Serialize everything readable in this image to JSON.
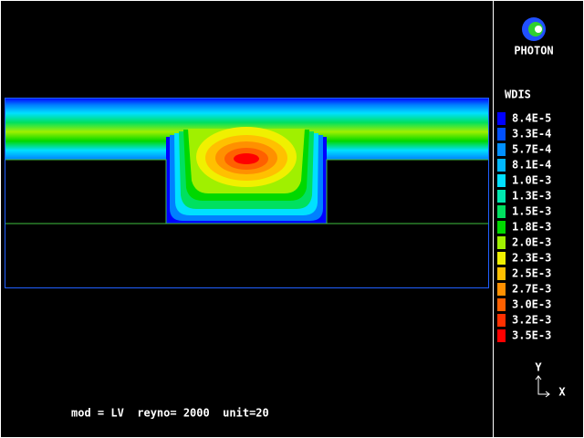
{
  "logo": {
    "text": "PHOTON"
  },
  "legend": {
    "title": "WDIS",
    "levels": [
      {
        "label": "8.4E-5",
        "color": "#0000ff"
      },
      {
        "label": "3.3E-4",
        "color": "#0050ff"
      },
      {
        "label": "5.7E-4",
        "color": "#0090ff"
      },
      {
        "label": "8.1E-4",
        "color": "#00b8ff"
      },
      {
        "label": "1.0E-3",
        "color": "#00e0ff"
      },
      {
        "label": "1.3E-3",
        "color": "#00e8b0"
      },
      {
        "label": "1.5E-3",
        "color": "#00e060"
      },
      {
        "label": "1.8E-3",
        "color": "#00d800"
      },
      {
        "label": "2.0E-3",
        "color": "#a0f000"
      },
      {
        "label": "2.3E-3",
        "color": "#f0f000"
      },
      {
        "label": "2.5E-3",
        "color": "#ffc000"
      },
      {
        "label": "2.7E-3",
        "color": "#ff9000"
      },
      {
        "label": "3.0E-3",
        "color": "#ff6000"
      },
      {
        "label": "3.2E-3",
        "color": "#ff3000"
      },
      {
        "label": "3.5E-3",
        "color": "#ff0000"
      }
    ]
  },
  "axes": {
    "y": "Y",
    "x": "X"
  },
  "footer": "mod = LV  reyno= 2000  unit=20"
}
